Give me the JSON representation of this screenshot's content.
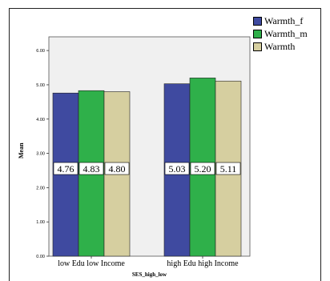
{
  "chart_data": {
    "type": "bar",
    "categories": [
      "low Edu low Income",
      "high Edu high Income"
    ],
    "series": [
      {
        "name": "Warmth_f",
        "values": [
          4.76,
          5.03
        ],
        "color": "#3f4aa0"
      },
      {
        "name": "Warmth_m",
        "values": [
          4.83,
          5.2
        ],
        "color": "#2fb04a"
      },
      {
        "name": "Warmth",
        "values": [
          4.8,
          5.11
        ],
        "color": "#d6cfa0"
      }
    ],
    "value_labels": [
      [
        "4.76",
        "5.03"
      ],
      [
        "4.83",
        "5.20"
      ],
      [
        "4.80",
        "5.11"
      ]
    ],
    "ylabel": "Mean",
    "xlabel": "SES_high_low",
    "yticks": [
      "0.00",
      "1.00",
      "2.00",
      "3.00",
      "4.00",
      "5.00",
      "6.00"
    ],
    "ylim": [
      0,
      6.4
    ],
    "grid": false,
    "legend_position": "right"
  }
}
